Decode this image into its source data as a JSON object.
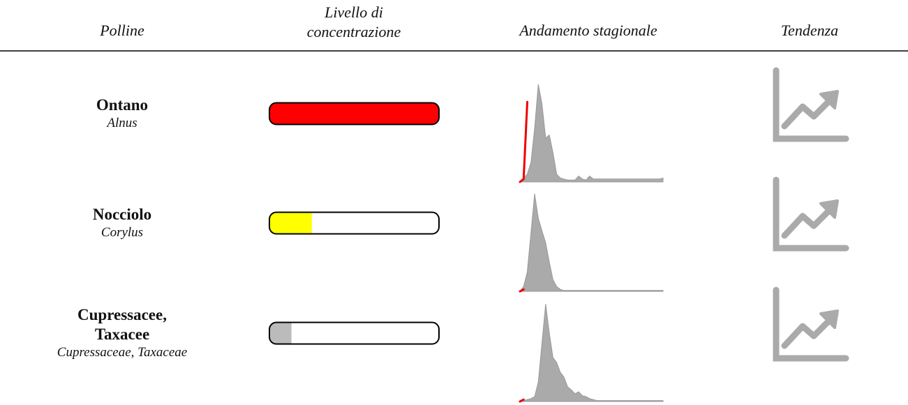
{
  "header": {
    "columns": [
      "Polline",
      "Livello di concentrazione",
      "Andamento stagionale",
      "Tendenza"
    ]
  },
  "season_ylim": [
    0,
    100
  ],
  "rows": [
    {
      "name": "Ontano",
      "latin": "Alnus",
      "level": 1,
      "level_color": "#ff0000",
      "season": [
        0,
        4,
        8,
        20,
        55,
        100,
        80,
        45,
        48,
        30,
        8,
        4,
        3,
        2,
        2,
        2,
        6,
        3,
        2,
        6,
        3,
        3,
        3,
        3,
        3,
        3,
        3,
        3,
        3,
        3,
        3,
        3,
        3,
        3,
        3,
        3,
        3,
        3,
        3,
        4
      ],
      "current": [
        0,
        3,
        82
      ]
    },
    {
      "name": "Nocciolo",
      "latin": "Corylus",
      "level": 0.25,
      "level_color": "#ffff00",
      "season": [
        0,
        5,
        20,
        60,
        100,
        75,
        62,
        50,
        30,
        12,
        5,
        2,
        1,
        1,
        1,
        1,
        1,
        1,
        1,
        1,
        1,
        1,
        1,
        1,
        1,
        1,
        1,
        1,
        1,
        1,
        1,
        1,
        1,
        1,
        1,
        1,
        1,
        1,
        1,
        1
      ],
      "current": [
        0,
        2
      ]
    },
    {
      "name": "Cupressacee, Taxacee",
      "latin": "Cupressaceae, Taxaceae",
      "level": 0.13,
      "level_color": "#bbbbbb",
      "season": [
        0,
        1,
        2,
        3,
        5,
        20,
        60,
        100,
        70,
        45,
        40,
        30,
        25,
        15,
        12,
        8,
        10,
        6,
        5,
        3,
        2,
        1,
        1,
        1,
        1,
        1,
        1,
        1,
        1,
        1,
        1,
        1,
        1,
        1,
        1,
        1,
        1,
        1,
        1,
        1
      ],
      "current": [
        0,
        2
      ]
    }
  ]
}
